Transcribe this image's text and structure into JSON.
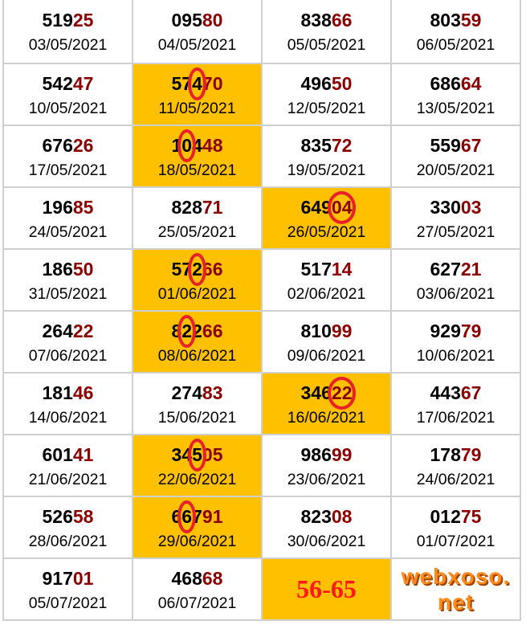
{
  "watermark": "webxoso.net",
  "colors": {
    "highlight": "#ffc000",
    "tail_digits": "#8b0000",
    "circle": "#e8202a",
    "prediction": "#ff1a1a"
  },
  "rows": [
    [
      {
        "prefix": "519",
        "tail": "25",
        "date": "03/05/2021"
      },
      {
        "prefix": "095",
        "tail": "80",
        "date": "04/05/2021"
      },
      {
        "prefix": "838",
        "tail": "66",
        "date": "05/05/2021"
      },
      {
        "prefix": "803",
        "tail": "59",
        "date": "06/05/2021"
      }
    ],
    [
      {
        "prefix": "542",
        "tail": "47",
        "date": "10/05/2021"
      },
      {
        "prefix": "574",
        "tail": "70",
        "date": "11/05/2021",
        "highlight": true,
        "circled": [
          2,
          2
        ]
      },
      {
        "prefix": "496",
        "tail": "50",
        "date": "12/05/2021"
      },
      {
        "prefix": "686",
        "tail": "64",
        "date": "13/05/2021"
      }
    ],
    [
      {
        "prefix": "676",
        "tail": "26",
        "date": "17/05/2021"
      },
      {
        "prefix": "104",
        "tail": "48",
        "date": "18/05/2021",
        "highlight": true,
        "circled": [
          1,
          1
        ]
      },
      {
        "prefix": "835",
        "tail": "72",
        "date": "19/05/2021"
      },
      {
        "prefix": "559",
        "tail": "67",
        "date": "20/05/2021"
      }
    ],
    [
      {
        "prefix": "196",
        "tail": "85",
        "date": "24/05/2021"
      },
      {
        "prefix": "828",
        "tail": "71",
        "date": "25/05/2021"
      },
      {
        "prefix": "649",
        "tail": "04",
        "date": "26/05/2021",
        "highlight": true,
        "circled": [
          3,
          4
        ]
      },
      {
        "prefix": "330",
        "tail": "03",
        "date": "27/05/2021"
      }
    ],
    [
      {
        "prefix": "186",
        "tail": "50",
        "date": "31/05/2021"
      },
      {
        "prefix": "572",
        "tail": "66",
        "date": "01/06/2021",
        "highlight": true,
        "circled": [
          2,
          2
        ]
      },
      {
        "prefix": "517",
        "tail": "14",
        "date": "02/06/2021"
      },
      {
        "prefix": "627",
        "tail": "21",
        "date": "03/06/2021"
      }
    ],
    [
      {
        "prefix": "264",
        "tail": "22",
        "date": "07/06/2021"
      },
      {
        "prefix": "822",
        "tail": "66",
        "date": "08/06/2021",
        "highlight": true,
        "circled": [
          1,
          1
        ]
      },
      {
        "prefix": "810",
        "tail": "99",
        "date": "09/06/2021"
      },
      {
        "prefix": "929",
        "tail": "79",
        "date": "10/06/2021"
      }
    ],
    [
      {
        "prefix": "181",
        "tail": "46",
        "date": "14/06/2021"
      },
      {
        "prefix": "274",
        "tail": "83",
        "date": "15/06/2021"
      },
      {
        "prefix": "346",
        "tail": "22",
        "date": "16/06/2021",
        "highlight": true,
        "circled": [
          3,
          4
        ]
      },
      {
        "prefix": "443",
        "tail": "67",
        "date": "17/06/2021"
      }
    ],
    [
      {
        "prefix": "601",
        "tail": "41",
        "date": "21/06/2021"
      },
      {
        "prefix": "345",
        "tail": "05",
        "date": "22/06/2021",
        "highlight": true,
        "circled": [
          2,
          2
        ]
      },
      {
        "prefix": "986",
        "tail": "99",
        "date": "23/06/2021"
      },
      {
        "prefix": "178",
        "tail": "79",
        "date": "24/06/2021"
      }
    ],
    [
      {
        "prefix": "526",
        "tail": "58",
        "date": "28/06/2021"
      },
      {
        "prefix": "667",
        "tail": "91",
        "date": "29/06/2021",
        "highlight": true,
        "circled": [
          1,
          1
        ]
      },
      {
        "prefix": "823",
        "tail": "08",
        "date": "30/06/2021"
      },
      {
        "prefix": "012",
        "tail": "75",
        "date": "01/07/2021"
      }
    ],
    [
      {
        "prefix": "917",
        "tail": "01",
        "date": "05/07/2021"
      },
      {
        "prefix": "468",
        "tail": "68",
        "date": "06/07/2021"
      },
      {
        "prediction": "56-65",
        "highlight": true
      },
      {}
    ]
  ]
}
